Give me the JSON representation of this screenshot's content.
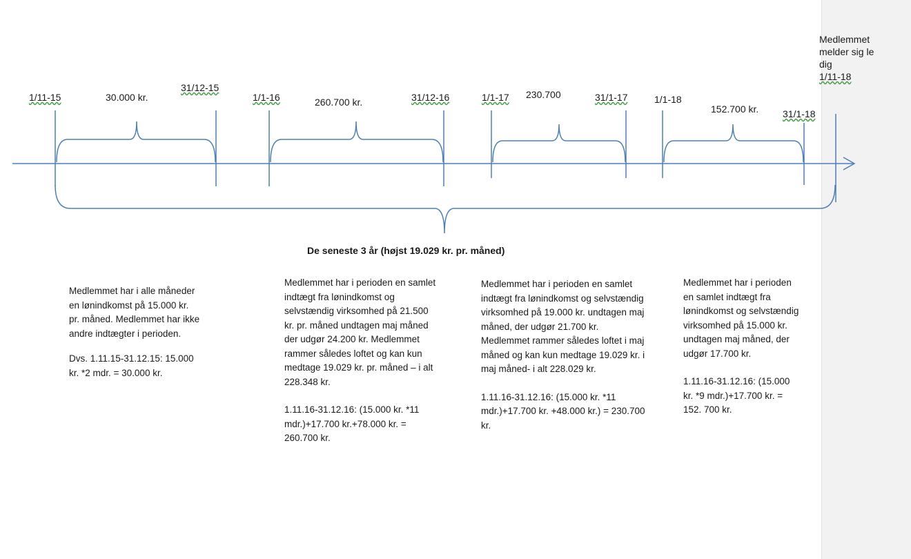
{
  "notice": {
    "text": "Medlemmet melder sig ledig",
    "date": "1/11-18"
  },
  "periods": [
    {
      "start": "1/11-15",
      "amount": "30.000 kr.",
      "end": "31/12-15"
    },
    {
      "start": "1/1-16",
      "amount": "260.700 kr.",
      "end": "31/12-16"
    },
    {
      "start": "1/1-17",
      "amount": "230.700",
      "end": "31/1-17"
    },
    {
      "start": "1/1-18",
      "amount": "152.700 kr.",
      "end": "31/1-18"
    }
  ],
  "summary": "De seneste 3 år (højst 19.029 kr. pr. måned)",
  "descriptions": [
    {
      "text": "Medlemmet har i alle måneder en lønindkomst på 15.000 kr. pr. måned. Medlemmet har ikke andre indtægter i perioden.",
      "calc": "Dvs. 1.11.15-31.12.15: 15.000 kr. *2 mdr. = 30.000 kr."
    },
    {
      "text": "Medlemmet har i perioden en samlet indtægt fra lønindkomst og selvstændig virksomhed på 21.500 kr. pr. måned undtagen maj måned der udgør 24.200 kr. Medlemmet rammer således loftet og kan kun medtage 19.029 kr. pr. måned – i alt 228.348 kr.",
      "calc": "1.11.16-31.12.16: (15.000 kr. *11 mdr.)+17.700 kr.+78.000 kr. = 260.700 kr."
    },
    {
      "text": "Medlemmet har i perioden en samlet indtægt fra lønindkomst og selvstændig virksomhed på 19.000 kr. undtagen maj måned, der udgør 21.700 kr. Medlemmet rammer således loftet i maj måned og kan kun medtage 19.029 kr. i maj måned- i alt 228.029 kr.",
      "calc": "1.11.16-31.12.16: (15.000 kr. *11 mdr.)+17.700 kr. +48.000 kr.) = 230.700 kr."
    },
    {
      "text": "Medlemmet har i perioden en samlet indtægt fra lønindkomst og selvstændig virksomhed på 15.000 kr. undtagen maj måned, der udgør 17.700 kr.",
      "calc": "1.11.16-31.12.16: (15.000 kr. *9 mdr.)+17.700 kr. = 152. 700 kr."
    }
  ],
  "colors": {
    "axis": "#4a7ebb",
    "bracket": "#4a7ebb",
    "squiggle": "#3c9a3c"
  }
}
